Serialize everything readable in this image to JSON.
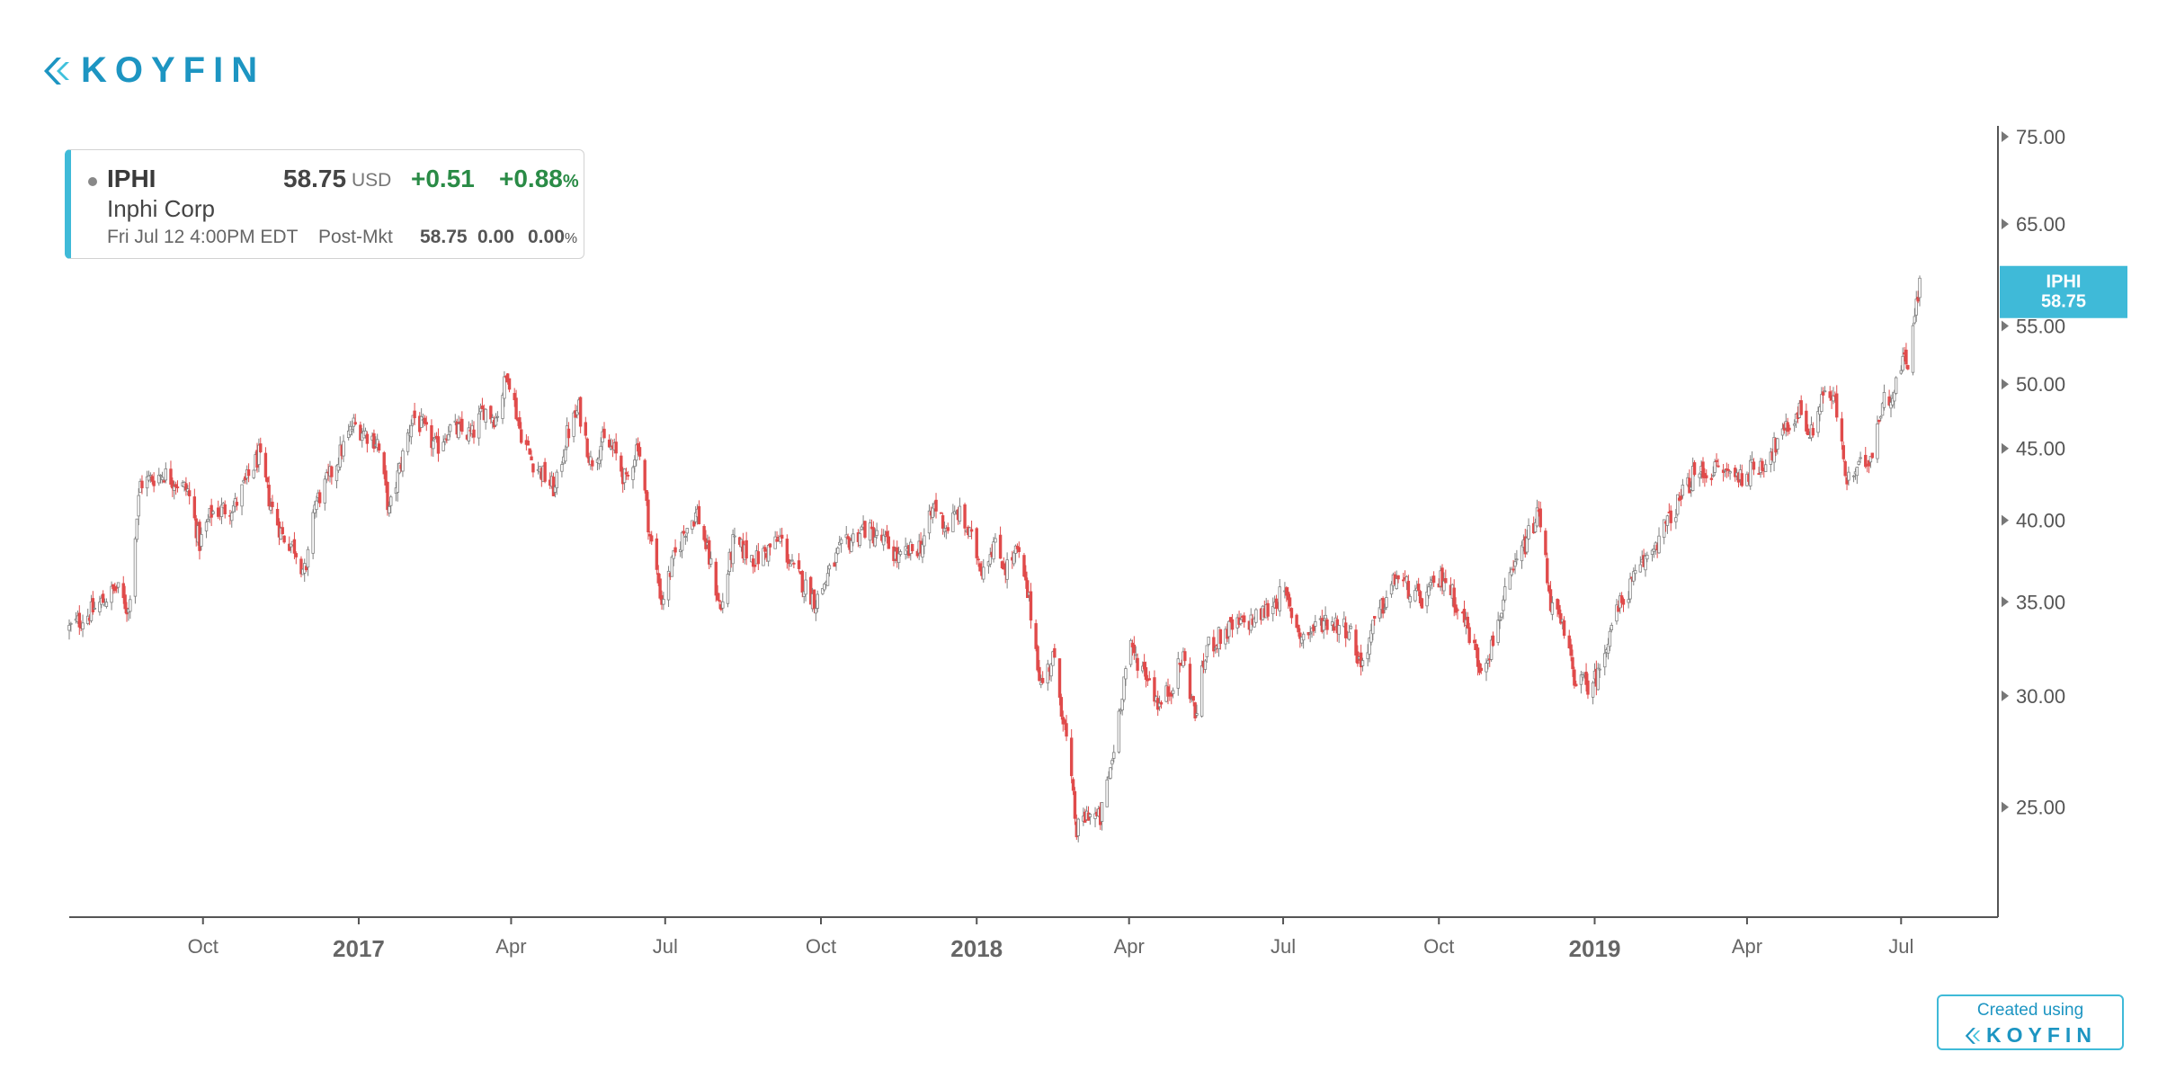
{
  "logo": {
    "text": "KOYFIN"
  },
  "quote": {
    "symbol": "IPHI",
    "price": "58.75",
    "currency": "USD",
    "change": "+0.51",
    "change_pct": "+0.88",
    "pct_sign": "%",
    "name": "Inphi Corp",
    "timestamp": "Fri Jul 12 4:00PM EDT",
    "post_label": "Post-Mkt",
    "post_price": "58.75",
    "post_change": "0.00",
    "post_pct": "0.00",
    "post_pct_sign": "%"
  },
  "badge": {
    "line1": "Created using",
    "line2": "KOYFIN"
  },
  "colors": {
    "up": "#808080",
    "down": "#e04b4b",
    "accent": "#3fbad8",
    "brand": "#1d95c2",
    "positive": "#2a8b46"
  },
  "chart_data": {
    "type": "candlestick",
    "scale": "log",
    "ylim": [
      21,
      75
    ],
    "y_ticks": [
      "75.00",
      "65.00",
      "55.00",
      "50.00",
      "45.00",
      "40.00",
      "35.00",
      "30.00",
      "25.00"
    ],
    "x_ticks": [
      {
        "date": "2016-10-01",
        "label": "Oct",
        "major": false
      },
      {
        "date": "2017-01-01",
        "label": "2017",
        "major": true
      },
      {
        "date": "2017-04-01",
        "label": "Apr",
        "major": false
      },
      {
        "date": "2017-07-01",
        "label": "Jul",
        "major": false
      },
      {
        "date": "2017-10-01",
        "label": "Oct",
        "major": false
      },
      {
        "date": "2018-01-01",
        "label": "2018",
        "major": true
      },
      {
        "date": "2018-04-01",
        "label": "Apr",
        "major": false
      },
      {
        "date": "2018-07-01",
        "label": "Jul",
        "major": false
      },
      {
        "date": "2018-10-01",
        "label": "Oct",
        "major": false
      },
      {
        "date": "2019-01-01",
        "label": "2019",
        "major": true
      },
      {
        "date": "2019-04-01",
        "label": "Apr",
        "major": false
      },
      {
        "date": "2019-07-01",
        "label": "Jul",
        "major": false
      }
    ],
    "x_range": [
      "2016-07-14",
      "2019-07-12"
    ],
    "price_label": {
      "symbol": "IPHI",
      "value": "58.75"
    },
    "close_path": [
      [
        "2016-07-14",
        33.5
      ],
      [
        "2016-07-28",
        34.5
      ],
      [
        "2016-08-11",
        35.8
      ],
      [
        "2016-08-18",
        34.5
      ],
      [
        "2016-08-25",
        42.5
      ],
      [
        "2016-09-08",
        43.2
      ],
      [
        "2016-09-22",
        42.0
      ],
      [
        "2016-09-29",
        38.5
      ],
      [
        "2016-10-06",
        40.5
      ],
      [
        "2016-10-20",
        41.0
      ],
      [
        "2016-11-03",
        44.5
      ],
      [
        "2016-11-10",
        41.0
      ],
      [
        "2016-11-17",
        39.0
      ],
      [
        "2016-11-24",
        38.3
      ],
      [
        "2016-12-01",
        36.5
      ],
      [
        "2016-12-05",
        40.8
      ],
      [
        "2016-12-15",
        43.0
      ],
      [
        "2016-12-29",
        46.8
      ],
      [
        "2017-01-12",
        45.5
      ],
      [
        "2017-01-19",
        40.5
      ],
      [
        "2017-02-02",
        47.5
      ],
      [
        "2017-02-16",
        45.0
      ],
      [
        "2017-02-23",
        46.5
      ],
      [
        "2017-03-09",
        46.0
      ],
      [
        "2017-03-16",
        48.0
      ],
      [
        "2017-03-23",
        47.3
      ],
      [
        "2017-03-30",
        51.0
      ],
      [
        "2017-04-06",
        46.5
      ],
      [
        "2017-04-13",
        44.2
      ],
      [
        "2017-04-27",
        42.0
      ],
      [
        "2017-05-04",
        46.0
      ],
      [
        "2017-05-11",
        48.0
      ],
      [
        "2017-05-18",
        44.0
      ],
      [
        "2017-05-25",
        45.5
      ],
      [
        "2017-06-01",
        44.8
      ],
      [
        "2017-06-08",
        42.5
      ],
      [
        "2017-06-15",
        45.5
      ],
      [
        "2017-06-22",
        39.0
      ],
      [
        "2017-06-29",
        35.0
      ],
      [
        "2017-07-06",
        37.5
      ],
      [
        "2017-07-13",
        39.5
      ],
      [
        "2017-07-20",
        40.5
      ],
      [
        "2017-07-27",
        37.5
      ],
      [
        "2017-08-03",
        34.5
      ],
      [
        "2017-08-10",
        38.5
      ],
      [
        "2017-08-24",
        37.5
      ],
      [
        "2017-09-07",
        38.8
      ],
      [
        "2017-09-14",
        37.0
      ],
      [
        "2017-09-28",
        35.0
      ],
      [
        "2017-10-12",
        38.0
      ],
      [
        "2017-10-26",
        39.5
      ],
      [
        "2017-11-09",
        38.5
      ],
      [
        "2017-11-16",
        37.5
      ],
      [
        "2017-11-30",
        38.5
      ],
      [
        "2017-12-07",
        41.0
      ],
      [
        "2017-12-14",
        39.5
      ],
      [
        "2017-12-21",
        40.5
      ],
      [
        "2017-12-28",
        39.0
      ],
      [
        "2018-01-04",
        37.0
      ],
      [
        "2018-01-11",
        38.5
      ],
      [
        "2018-01-18",
        37.0
      ],
      [
        "2018-01-25",
        38.0
      ],
      [
        "2018-02-01",
        35.0
      ],
      [
        "2018-02-08",
        30.5
      ],
      [
        "2018-02-15",
        32.0
      ],
      [
        "2018-02-22",
        28.5
      ],
      [
        "2018-03-01",
        24.0
      ],
      [
        "2018-03-08",
        24.8
      ],
      [
        "2018-03-15",
        24.5
      ],
      [
        "2018-03-22",
        27.0
      ],
      [
        "2018-04-01",
        32.5
      ],
      [
        "2018-04-12",
        31.0
      ],
      [
        "2018-04-19",
        29.5
      ],
      [
        "2018-04-26",
        30.5
      ],
      [
        "2018-05-03",
        32.0
      ],
      [
        "2018-05-10",
        29.0
      ],
      [
        "2018-05-17",
        32.5
      ],
      [
        "2018-05-31",
        33.5
      ],
      [
        "2018-06-14",
        34.0
      ],
      [
        "2018-06-21",
        34.5
      ],
      [
        "2018-07-01",
        35.5
      ],
      [
        "2018-07-12",
        33.0
      ],
      [
        "2018-07-26",
        34.0
      ],
      [
        "2018-08-09",
        33.5
      ],
      [
        "2018-08-16",
        31.5
      ],
      [
        "2018-08-23",
        33.5
      ],
      [
        "2018-09-06",
        36.5
      ],
      [
        "2018-09-20",
        35.0
      ],
      [
        "2018-10-04",
        36.5
      ],
      [
        "2018-10-18",
        33.5
      ],
      [
        "2018-10-25",
        31.5
      ],
      [
        "2018-11-01",
        32.5
      ],
      [
        "2018-11-08",
        35.0
      ],
      [
        "2018-11-15",
        37.0
      ],
      [
        "2018-11-29",
        40.5
      ],
      [
        "2018-12-06",
        35.0
      ],
      [
        "2018-12-13",
        33.5
      ],
      [
        "2018-12-20",
        31.0
      ],
      [
        "2018-12-27",
        30.5
      ],
      [
        "2019-01-03",
        31.0
      ],
      [
        "2019-01-10",
        33.5
      ],
      [
        "2019-01-17",
        35.0
      ],
      [
        "2019-01-31",
        37.5
      ],
      [
        "2019-02-14",
        40.0
      ],
      [
        "2019-02-28",
        43.0
      ],
      [
        "2019-03-14",
        43.5
      ],
      [
        "2019-03-28",
        43.0
      ],
      [
        "2019-04-11",
        44.0
      ],
      [
        "2019-04-25",
        46.5
      ],
      [
        "2019-05-02",
        48.0
      ],
      [
        "2019-05-09",
        46.0
      ],
      [
        "2019-05-16",
        49.5
      ],
      [
        "2019-05-23",
        48.5
      ],
      [
        "2019-05-30",
        42.5
      ],
      [
        "2019-06-06",
        43.5
      ],
      [
        "2019-06-13",
        44.5
      ],
      [
        "2019-06-20",
        48.5
      ],
      [
        "2019-06-27",
        49.5
      ],
      [
        "2019-07-03",
        52.5
      ],
      [
        "2019-07-05",
        52.0
      ],
      [
        "2019-07-12",
        58.75
      ]
    ]
  }
}
